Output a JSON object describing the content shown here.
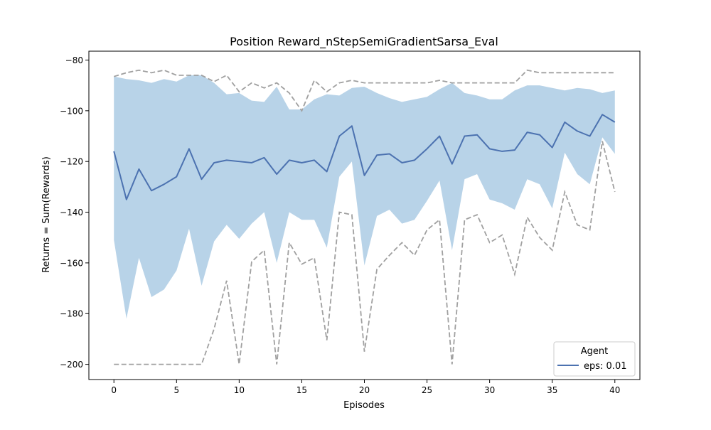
{
  "chart_data": {
    "type": "line",
    "title": "Position Reward_nStepSemiGradientSarsa_Eval",
    "xlabel": "Episodes",
    "ylabel": "Returns = Sum(Rewards)",
    "xlim": [
      -2,
      42
    ],
    "ylim": [
      -206,
      -76.5
    ],
    "xticks": [
      0,
      5,
      10,
      15,
      20,
      25,
      30,
      35,
      40
    ],
    "yticks": [
      -200,
      -180,
      -160,
      -140,
      -120,
      -100,
      -80
    ],
    "grid": false,
    "legend": {
      "title": "Agent",
      "placement": "lower right"
    },
    "x": [
      0,
      1,
      2,
      3,
      4,
      5,
      6,
      7,
      8,
      9,
      10,
      11,
      12,
      13,
      14,
      15,
      16,
      17,
      18,
      19,
      20,
      21,
      22,
      23,
      24,
      25,
      26,
      27,
      28,
      29,
      30,
      31,
      32,
      33,
      34,
      35,
      36,
      37,
      38,
      39,
      40
    ],
    "series": [
      {
        "name": "eps: 0.01",
        "role": "mean",
        "color": "#4c72b0",
        "values": [
          -116,
          -135,
          -123,
          -131.5,
          -129,
          -126,
          -115,
          -127,
          -120.5,
          -119.5,
          -120,
          -120.5,
          -118.5,
          -125,
          -119.5,
          -120.5,
          -119.5,
          -124,
          -110,
          -106,
          -125.5,
          -117.5,
          -117,
          -120.5,
          -119.5,
          -115,
          -110,
          -121,
          -110,
          -109.5,
          -115,
          -116,
          -115.5,
          -108.5,
          -109.5,
          -114.5,
          -104.5,
          -108,
          -110,
          -101.5,
          -104.5
        ]
      }
    ],
    "band": {
      "color": "#b8d3e8",
      "upper": [
        -86.5,
        -87.5,
        -88,
        -89,
        -87.5,
        -88.5,
        -86,
        -86,
        -89,
        -93.5,
        -93,
        -96,
        -96.5,
        -90.5,
        -99.5,
        -99.5,
        -95.5,
        -93.5,
        -94,
        -91,
        -90.5,
        -93,
        -95,
        -96.5,
        -95.5,
        -94.5,
        -91.5,
        -89,
        -93,
        -94,
        -95.5,
        -95.5,
        -92,
        -90,
        -90,
        -91,
        -92,
        -91,
        -91.5,
        -93,
        -92
      ],
      "lower": [
        -151,
        -182,
        -158,
        -173.5,
        -170.5,
        -163,
        -146.5,
        -169,
        -151.5,
        -145,
        -150.5,
        -144.5,
        -140,
        -160,
        -140,
        -143,
        -143,
        -154,
        -126,
        -120,
        -161,
        -141.5,
        -139,
        -144.5,
        -143,
        -135.5,
        -127.5,
        -155,
        -127,
        -125,
        -135,
        -136.5,
        -139,
        -127,
        -129,
        -138.5,
        -116.5,
        -125,
        -129,
        -110.5,
        -117
      ]
    },
    "bounds": {
      "color": "#a0a0a0",
      "max": [
        -86.5,
        -85,
        -84,
        -85,
        -84,
        -86,
        -86,
        -86,
        -88.5,
        -86,
        -92.5,
        -89,
        -91,
        -89,
        -93,
        -100,
        -88,
        -92.5,
        -89,
        -88,
        -89,
        -89,
        -89,
        -89,
        -89,
        -89,
        -88,
        -89,
        -89,
        -89,
        -89,
        -89,
        -89,
        -84,
        -85,
        -85,
        -85,
        -85,
        -85,
        -85,
        -85
      ],
      "min": [
        -200,
        -200,
        -200,
        -200,
        -200,
        -200,
        -200,
        -200,
        -186,
        -167,
        -200,
        -159.5,
        -155,
        -200,
        -152,
        -160.5,
        -158,
        -190.5,
        -140,
        -141,
        -195,
        -162.5,
        -157,
        -152,
        -157,
        -147,
        -143,
        -200,
        -143,
        -141,
        -152,
        -149,
        -164.5,
        -142,
        -150,
        -155,
        -132,
        -145,
        -147,
        -112,
        -132
      ]
    }
  }
}
